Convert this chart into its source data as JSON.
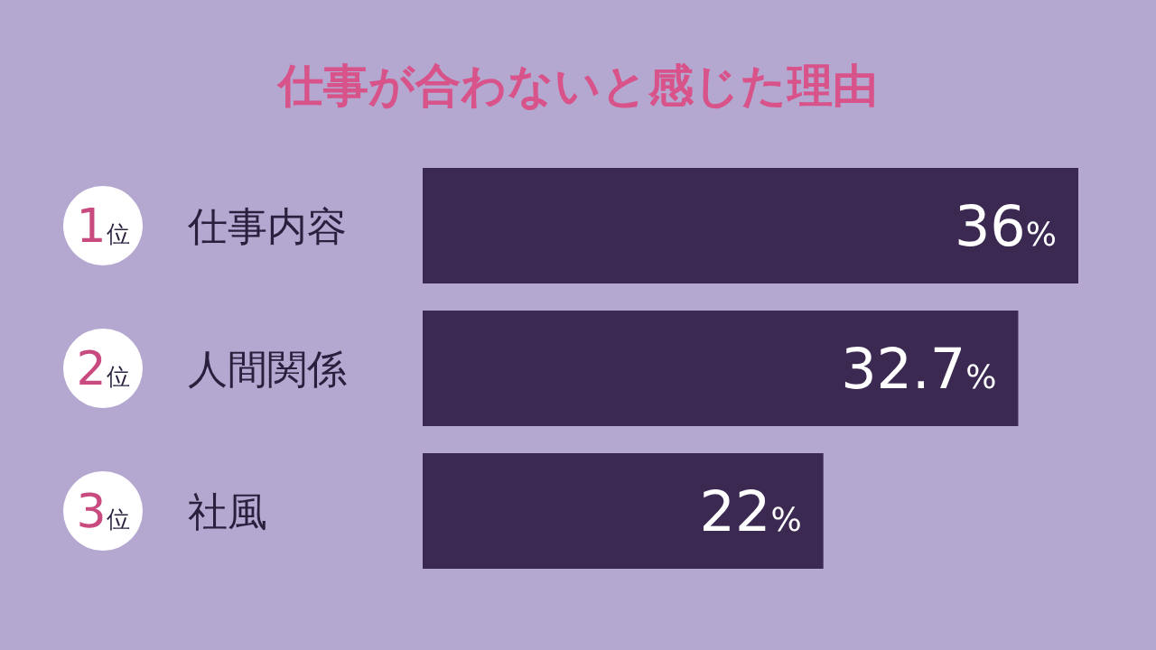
{
  "chart_data": {
    "type": "bar",
    "orientation": "horizontal",
    "title": "仕事が合わないと感じた理由",
    "categories": [
      "仕事内容",
      "人間関係",
      "社風"
    ],
    "values": [
      36,
      32.7,
      22
    ],
    "value_labels": [
      "36%",
      "32.7%",
      "22%"
    ],
    "color": "#3b2952",
    "annotations": [
      "1位",
      "2位",
      "3位"
    ]
  }
}
